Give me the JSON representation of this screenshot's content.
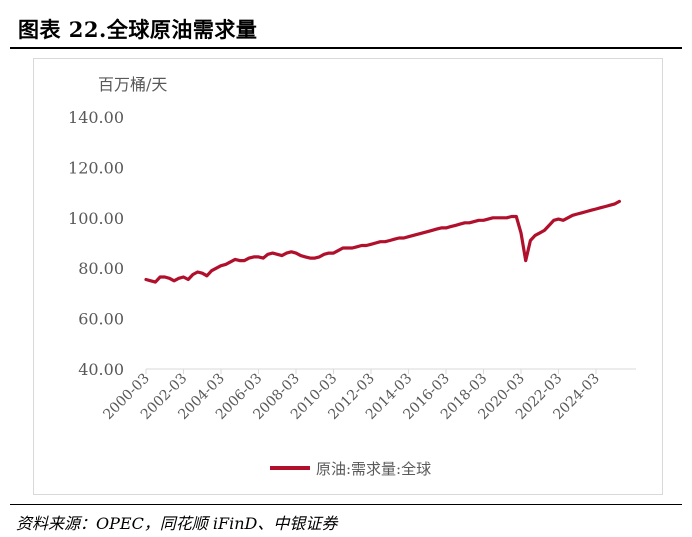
{
  "figure": {
    "title": "图表 22.全球原油需求量",
    "source": "资料来源：OPEC，同花顺 iFinD、中银证券"
  },
  "colors": {
    "series": "#b0102c",
    "axis": "#d9d9d9",
    "text": "#595959"
  },
  "chart_data": {
    "type": "line",
    "unit_label": "百万桶/天",
    "ylim": [
      40,
      140
    ],
    "y_ticks": [
      "140.00",
      "120.00",
      "100.00",
      "80.00",
      "60.00",
      "40.00"
    ],
    "x_ticks": [
      "2000-03",
      "2002-03",
      "2004-03",
      "2006-03",
      "2008-03",
      "2010-03",
      "2012-03",
      "2014-03",
      "2016-03",
      "2018-03",
      "2020-03",
      "2022-03",
      "2024-03"
    ],
    "grid": false,
    "legend_position": "bottom",
    "series": [
      {
        "name": "原油:需求量:全球",
        "x": [
          "2000-03",
          "2000-06",
          "2000-09",
          "2000-12",
          "2001-03",
          "2001-06",
          "2001-09",
          "2001-12",
          "2002-03",
          "2002-06",
          "2002-09",
          "2002-12",
          "2003-03",
          "2003-06",
          "2003-09",
          "2003-12",
          "2004-03",
          "2004-06",
          "2004-09",
          "2004-12",
          "2005-03",
          "2005-06",
          "2005-09",
          "2005-12",
          "2006-03",
          "2006-06",
          "2006-09",
          "2006-12",
          "2007-03",
          "2007-06",
          "2007-09",
          "2007-12",
          "2008-03",
          "2008-06",
          "2008-09",
          "2008-12",
          "2009-03",
          "2009-06",
          "2009-09",
          "2009-12",
          "2010-03",
          "2010-06",
          "2010-09",
          "2010-12",
          "2011-03",
          "2011-06",
          "2011-09",
          "2011-12",
          "2012-03",
          "2012-06",
          "2012-09",
          "2012-12",
          "2013-03",
          "2013-06",
          "2013-09",
          "2013-12",
          "2014-03",
          "2014-06",
          "2014-09",
          "2014-12",
          "2015-03",
          "2015-06",
          "2015-09",
          "2015-12",
          "2016-03",
          "2016-06",
          "2016-09",
          "2016-12",
          "2017-03",
          "2017-06",
          "2017-09",
          "2017-12",
          "2018-03",
          "2018-06",
          "2018-09",
          "2018-12",
          "2019-03",
          "2019-06",
          "2019-09",
          "2019-12",
          "2020-03",
          "2020-06",
          "2020-09",
          "2020-12",
          "2021-03",
          "2021-06",
          "2021-09",
          "2021-12",
          "2022-03",
          "2022-06",
          "2022-09",
          "2022-12",
          "2023-03",
          "2023-06",
          "2023-09",
          "2023-12",
          "2024-03",
          "2024-06",
          "2024-09",
          "2024-12",
          "2025-03",
          "2025-06"
        ],
        "values": [
          75.5,
          75.0,
          74.5,
          76.5,
          76.5,
          76.0,
          75.0,
          76.0,
          76.5,
          75.5,
          77.5,
          78.5,
          78.0,
          77.0,
          79.0,
          80.0,
          81.0,
          81.5,
          82.5,
          83.5,
          83.0,
          83.0,
          84.0,
          84.5,
          84.5,
          84.0,
          85.5,
          86.0,
          85.5,
          85.0,
          86.0,
          86.5,
          86.0,
          85.0,
          84.5,
          84.0,
          84.0,
          84.5,
          85.5,
          86.0,
          86.0,
          87.0,
          88.0,
          88.0,
          88.0,
          88.5,
          89.0,
          89.0,
          89.5,
          90.0,
          90.5,
          90.5,
          91.0,
          91.5,
          92.0,
          92.0,
          92.5,
          93.0,
          93.5,
          94.0,
          94.5,
          95.0,
          95.5,
          96.0,
          96.0,
          96.5,
          97.0,
          97.5,
          98.0,
          98.0,
          98.5,
          99.0,
          99.0,
          99.5,
          100.0,
          100.0,
          100.0,
          100.0,
          100.5,
          100.5,
          94.0,
          83.0,
          91.0,
          93.0,
          94.0,
          95.0,
          97.0,
          99.0,
          99.5,
          99.0,
          100.0,
          101.0,
          101.5,
          102.0,
          102.5,
          103.0,
          103.5,
          104.0,
          104.5,
          105.0,
          105.5,
          106.5
        ]
      }
    ]
  }
}
